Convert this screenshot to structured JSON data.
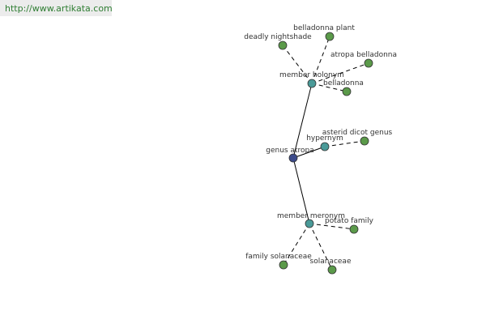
{
  "header": {
    "url": "http://www.artikata.com"
  },
  "nodes": [
    {
      "label": "genus atropa"
    },
    {
      "label": "member holonym"
    },
    {
      "label": "hypernym"
    },
    {
      "label": "member meronym"
    },
    {
      "label": "deadly nightshade"
    },
    {
      "label": "belladonna plant"
    },
    {
      "label": "atropa belladonna"
    },
    {
      "label": "belladonna"
    },
    {
      "label": "asterid dicot genus"
    },
    {
      "label": "potato family"
    },
    {
      "label": "family solanaceae"
    },
    {
      "label": "solanaceae"
    }
  ]
}
